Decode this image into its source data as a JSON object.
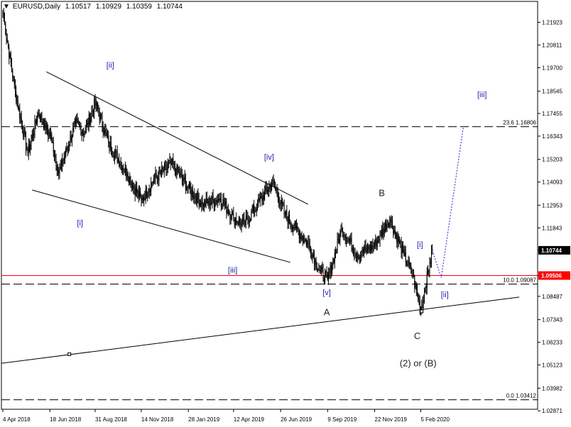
{
  "header": {
    "symbol": "EURUSD,Daily",
    "open": "1.10517",
    "high": "1.10929",
    "low": "1.10359",
    "close": "1.10744"
  },
  "chart_data": {
    "type": "line",
    "subtype": "candlestick-elliott-wave",
    "title": "",
    "ylim": [
      1.0255,
      1.2256
    ],
    "y_ticks": [
      "1.21923",
      "1.20811",
      "1.19700",
      "1.18545",
      "1.17455",
      "1.16343",
      "1.15203",
      "1.14093",
      "1.12953",
      "1.11843",
      "1.10744",
      "1.09506",
      "1.08487",
      "1.07343",
      "1.06233",
      "1.05123",
      "1.03982",
      "1.02871"
    ],
    "x_ticks": [
      "4 Apr 2018",
      "18 Jun 2018",
      "31 Aug 2018",
      "14 Nov 2018",
      "28 Jan 2019",
      "12 Apr 2019",
      "26 Jun 2019",
      "9 Sep 2019",
      "22 Nov 2019",
      "5 Feb 2020"
    ],
    "x_tick_index": [
      0,
      53,
      104,
      156,
      209,
      260,
      313,
      366,
      419,
      471
    ],
    "anchors": [
      [
        0,
        1.224
      ],
      [
        14,
        1.185
      ],
      [
        28,
        1.155
      ],
      [
        40,
        1.175
      ],
      [
        55,
        1.162
      ],
      [
        63,
        1.145
      ],
      [
        82,
        1.17
      ],
      [
        92,
        1.165
      ],
      [
        104,
        1.18
      ],
      [
        119,
        1.16
      ],
      [
        140,
        1.145
      ],
      [
        156,
        1.132
      ],
      [
        170,
        1.142
      ],
      [
        190,
        1.15
      ],
      [
        209,
        1.138
      ],
      [
        225,
        1.13
      ],
      [
        245,
        1.133
      ],
      [
        260,
        1.123
      ],
      [
        272,
        1.12
      ],
      [
        287,
        1.13
      ],
      [
        304,
        1.141
      ],
      [
        318,
        1.125
      ],
      [
        330,
        1.118
      ],
      [
        345,
        1.11
      ],
      [
        356,
        1.098
      ],
      [
        366,
        1.093
      ],
      [
        382,
        1.118
      ],
      [
        400,
        1.105
      ],
      [
        419,
        1.11
      ],
      [
        436,
        1.123
      ],
      [
        452,
        1.105
      ],
      [
        462,
        1.095
      ],
      [
        471,
        1.078
      ],
      [
        481,
        1.101
      ],
      [
        484,
        1.1074
      ]
    ],
    "projection": [
      [
        484,
        1.1074
      ],
      [
        494,
        1.094
      ],
      [
        519,
        1.168
      ]
    ],
    "trendlines": [
      {
        "name": "upper-channel-line",
        "points": [
          [
            49,
            1.195
          ],
          [
            344,
            1.13
          ]
        ]
      },
      {
        "name": "lower-channel-line",
        "points": [
          [
            33,
            1.137
          ],
          [
            324,
            1.1015
          ]
        ]
      },
      {
        "name": "long-support-line",
        "points": [
          [
            -2,
            1.052
          ],
          [
            582,
            1.0845
          ]
        ]
      }
    ],
    "horizontal_lines": [
      {
        "name": "fib-23-6-line",
        "level": 1.16806,
        "label": "23.6  1.16806",
        "color": "#000000",
        "dashed": true
      },
      {
        "name": "fib-10-0-line",
        "level": 1.09087,
        "label": "10.0  1.09087",
        "color": "#000000",
        "dashed": true
      },
      {
        "name": "fib-0-0-line",
        "level": 1.03412,
        "label": "0.0  1.03412",
        "color": "#000000",
        "dashed": true
      },
      {
        "name": "red-level-line",
        "level": 1.09506,
        "label": "",
        "color": "#ff0000",
        "dashed": false
      }
    ],
    "price_badges": [
      {
        "name": "current-price-badge",
        "level": 1.10744,
        "text": "1.10744",
        "bg": "#000000",
        "fg": "#ffffff"
      },
      {
        "name": "red-level-badge",
        "level": 1.09506,
        "text": "1.09506",
        "bg": "#ff0000",
        "fg": "#ffffff"
      }
    ],
    "markers": [
      {
        "name": "marker-left",
        "x": 75,
        "y": 1.0565
      },
      {
        "name": "marker-c",
        "x": 472,
        "y": 1.0775
      }
    ],
    "annotations": [
      {
        "text": "[ii]",
        "x": 121,
        "y": 1.197,
        "color": "#2020b0",
        "size": 11
      },
      {
        "text": "[i]",
        "x": 87,
        "y": 1.1195,
        "color": "#2020b0",
        "size": 11
      },
      {
        "text": "[iii]",
        "x": 259,
        "y": 1.0965,
        "color": "#2020b0",
        "size": 11
      },
      {
        "text": "[iv]",
        "x": 300,
        "y": 1.152,
        "color": "#2020b0",
        "size": 11
      },
      {
        "text": "[v]",
        "x": 365,
        "y": 1.0855,
        "color": "#2020b0",
        "size": 11
      },
      {
        "text": "A",
        "x": 365,
        "y": 1.0755,
        "color": "#222222",
        "size": 13
      },
      {
        "text": "B",
        "x": 427,
        "y": 1.134,
        "color": "#222222",
        "size": 13
      },
      {
        "text": "C",
        "x": 467,
        "y": 1.064,
        "color": "#222222",
        "size": 13
      },
      {
        "text": "(2) or (B)",
        "x": 468,
        "y": 1.0505,
        "color": "#222222",
        "size": 13
      },
      {
        "text": "[i]",
        "x": 470,
        "y": 1.109,
        "color": "#2020b0",
        "size": 11
      },
      {
        "text": "[ii]",
        "x": 498,
        "y": 1.0845,
        "color": "#2020b0",
        "size": 11
      },
      {
        "text": "[iii]",
        "x": 540,
        "y": 1.1825,
        "color": "#2020b0",
        "size": 11
      }
    ]
  }
}
